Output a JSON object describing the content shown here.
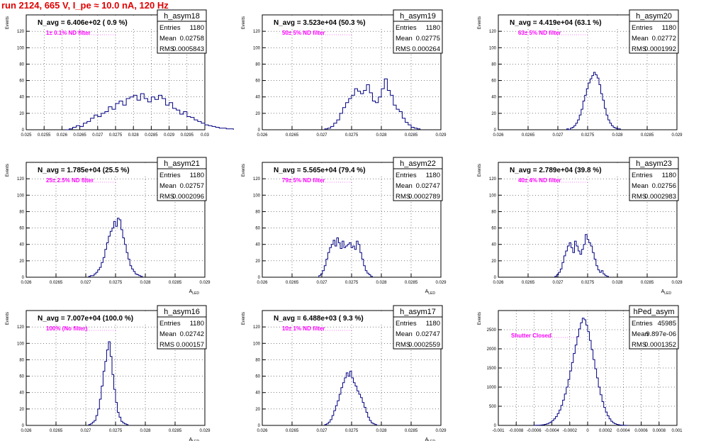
{
  "run_title": "run 2124,   665 V, I_pe ≈ 10.0 nA, 120 Hz",
  "colors": {
    "line": "#000080",
    "note": "#ff00ff",
    "title": "#e00000"
  },
  "chart_data": [
    {
      "type": "histogram",
      "title": "h_asym18",
      "stats": {
        "entries_label": "Entries",
        "entries": "1180",
        "mean_label": "Mean",
        "mean": "0.02758",
        "rms_label": "RMS",
        "rms": "0.0005843"
      },
      "navg": "N_avg = 6.406e+02 ( 0.9 %)",
      "note": "1± 0.1% ND filter",
      "ylabel": "Events",
      "xlabel": "",
      "xlim": [
        0.025,
        0.03
      ],
      "ylim": [
        0,
        140
      ],
      "xticks": [
        "0.025",
        "0.0255",
        "0.026",
        "0.0265",
        "0.027",
        "0.0275",
        "0.028",
        "0.0285",
        "0.029",
        "0.0295",
        "0.03"
      ],
      "yticks": [
        0,
        20,
        40,
        60,
        80,
        100,
        120
      ],
      "bin_start": 0.0261,
      "bin_width": 0.0001,
      "counts": [
        0,
        1,
        3,
        5,
        4,
        8,
        10,
        14,
        18,
        16,
        20,
        22,
        28,
        25,
        32,
        35,
        30,
        38,
        40,
        42,
        36,
        44,
        38,
        34,
        40,
        37,
        42,
        38,
        30,
        33,
        26,
        24,
        19,
        22,
        16,
        15,
        12,
        10,
        8,
        6,
        5,
        4,
        3,
        2,
        2,
        1,
        1
      ]
    },
    {
      "type": "histogram",
      "title": "h_asym19",
      "stats": {
        "entries_label": "Entries",
        "entries": "1180",
        "mean_label": "Mean",
        "mean": "0.02775",
        "rms_label": "RMS",
        "rms": "0.000264"
      },
      "navg": "N_avg = 3.523e+04 (50.3 %)",
      "note": "50± 5% ND filter",
      "ylabel": "Events",
      "xlabel": "",
      "xlim": [
        0.026,
        0.029
      ],
      "ylim": [
        0,
        140
      ],
      "xticks": [
        "0.026",
        "0.0265",
        "0.027",
        "0.0275",
        "0.028",
        "0.0285",
        "0.029"
      ],
      "yticks": [
        0,
        20,
        40,
        60,
        80,
        100,
        120
      ],
      "bin_start": 0.02705,
      "bin_width": 5e-05,
      "counts": [
        1,
        2,
        4,
        8,
        12,
        20,
        27,
        33,
        38,
        42,
        50,
        47,
        44,
        48,
        55,
        45,
        35,
        33,
        40,
        50,
        62,
        48,
        42,
        30,
        25,
        22,
        14,
        9,
        6,
        3,
        2,
        1
      ]
    },
    {
      "type": "histogram",
      "title": "h_asym20",
      "stats": {
        "entries_label": "Entries",
        "entries": "1180",
        "mean_label": "Mean",
        "mean": "0.02772",
        "rms_label": "RMS",
        "rms": "0.0001992"
      },
      "navg": "N_avg = 4.419e+04 (63.1 %)",
      "note": "63± 5% ND filter",
      "ylabel": "Events",
      "xlabel": "",
      "xlim": [
        0.026,
        0.029
      ],
      "ylim": [
        0,
        140
      ],
      "xticks": [
        "0.026",
        "0.0265",
        "0.027",
        "0.0275",
        "0.028",
        "0.0285",
        "0.029"
      ],
      "yticks": [
        0,
        20,
        40,
        60,
        80,
        100,
        120
      ],
      "bin_start": 0.02715,
      "bin_width": 3e-05,
      "counts": [
        1,
        0,
        2,
        3,
        5,
        8,
        12,
        18,
        25,
        35,
        42,
        50,
        57,
        62,
        66,
        70,
        67,
        63,
        55,
        44,
        36,
        26,
        18,
        12,
        8,
        5,
        3,
        2,
        1,
        1
      ]
    },
    {
      "type": "histogram",
      "title": "h_asym21",
      "stats": {
        "entries_label": "Entries",
        "entries": "1180",
        "mean_label": "Mean",
        "mean": "0.02757",
        "rms_label": "RMS",
        "rms": "0.0002096"
      },
      "navg": "N_avg = 1.785e+04 (25.5 %)",
      "note": "25± 2.5% ND filter",
      "ylabel": "Events",
      "xlabel": "A_{LED}",
      "xlim": [
        0.026,
        0.029
      ],
      "ylim": [
        0,
        140
      ],
      "xticks": [
        "0.026",
        "0.0265",
        "0.027",
        "0.0275",
        "0.028",
        "0.0285",
        "0.029"
      ],
      "yticks": [
        0,
        20,
        40,
        60,
        80,
        100,
        120
      ],
      "bin_start": 0.02705,
      "bin_width": 3e-05,
      "counts": [
        1,
        2,
        2,
        4,
        6,
        9,
        12,
        18,
        24,
        34,
        42,
        50,
        56,
        60,
        68,
        62,
        72,
        70,
        58,
        48,
        40,
        30,
        22,
        14,
        10,
        7,
        4,
        3,
        2,
        1
      ]
    },
    {
      "type": "histogram",
      "title": "h_asym22",
      "stats": {
        "entries_label": "Entries",
        "entries": "1180",
        "mean_label": "Mean",
        "mean": "0.02747",
        "rms_label": "RMS",
        "rms": "0.0002789"
      },
      "navg": "N_avg = 5.565e+04 (79.4 %)",
      "note": "79± 5% ND filter",
      "ylabel": "Events",
      "xlabel": "A_{LED}",
      "xlim": [
        0.026,
        0.029
      ],
      "ylim": [
        0,
        140
      ],
      "xticks": [
        "0.026",
        "0.0265",
        "0.027",
        "0.0275",
        "0.028",
        "0.0285",
        "0.029"
      ],
      "yticks": [
        0,
        20,
        40,
        60,
        80,
        100,
        120
      ],
      "bin_start": 0.02695,
      "bin_width": 3e-05,
      "counts": [
        2,
        4,
        8,
        14,
        22,
        30,
        36,
        40,
        45,
        38,
        48,
        42,
        35,
        44,
        36,
        38,
        40,
        42,
        36,
        38,
        34,
        44,
        40,
        30,
        22,
        14,
        8,
        5,
        3,
        1
      ]
    },
    {
      "type": "histogram",
      "title": "h_asym23",
      "stats": {
        "entries_label": "Entries",
        "entries": "1180",
        "mean_label": "Mean",
        "mean": "0.02756",
        "rms_label": "RMS",
        "rms": "0.0002983"
      },
      "navg": "N_avg = 2.789e+04 (39.8 %)",
      "note": "40± 4% ND filter",
      "ylabel": "Events",
      "xlabel": "A_{LED}",
      "xlim": [
        0.026,
        0.029
      ],
      "ylim": [
        0,
        140
      ],
      "xticks": [
        "0.026",
        "0.0265",
        "0.027",
        "0.0275",
        "0.028",
        "0.0285",
        "0.029"
      ],
      "yticks": [
        0,
        20,
        40,
        60,
        80,
        100,
        120
      ],
      "bin_start": 0.02695,
      "bin_width": 3e-05,
      "counts": [
        1,
        3,
        6,
        10,
        18,
        26,
        32,
        38,
        42,
        36,
        30,
        44,
        38,
        32,
        28,
        34,
        40,
        52,
        46,
        42,
        38,
        30,
        22,
        14,
        9,
        6,
        8,
        4,
        2,
        1
      ]
    },
    {
      "type": "histogram",
      "title": "h_asym16",
      "stats": {
        "entries_label": "Entries",
        "entries": "1180",
        "mean_label": "Mean",
        "mean": "0.02742",
        "rms_label": "RMS",
        "rms": "0.000157"
      },
      "navg": "N_avg = 7.007e+04 (100.0 %)",
      "note": "100% (No filter)",
      "ylabel": "Events",
      "xlabel": "A_{LED}",
      "xlim": [
        0.026,
        0.029
      ],
      "ylim": [
        0,
        140
      ],
      "xticks": [
        "0.026",
        "0.0265",
        "0.027",
        "0.0275",
        "0.028",
        "0.0285",
        "0.029"
      ],
      "yticks": [
        0,
        20,
        40,
        60,
        80,
        100,
        120
      ],
      "bin_start": 0.02705,
      "bin_width": 3e-05,
      "counts": [
        1,
        2,
        4,
        6,
        12,
        20,
        32,
        48,
        66,
        78,
        92,
        102,
        84,
        62,
        44,
        28,
        16,
        10,
        5,
        3,
        2,
        1
      ]
    },
    {
      "type": "histogram",
      "title": "h_asym17",
      "stats": {
        "entries_label": "Entries",
        "entries": "1180",
        "mean_label": "Mean",
        "mean": "0.02747",
        "rms_label": "RMS",
        "rms": "0.0002559"
      },
      "navg": "N_avg = 6.488e+03 ( 9.3 %)",
      "note": "10± 1% ND filter",
      "ylabel": "Events",
      "xlabel": "A_{LED}",
      "xlim": [
        0.026,
        0.029
      ],
      "ylim": [
        0,
        140
      ],
      "xticks": [
        "0.026",
        "0.0265",
        "0.027",
        "0.0275",
        "0.028",
        "0.0285",
        "0.029"
      ],
      "yticks": [
        0,
        20,
        40,
        60,
        80,
        100,
        120
      ],
      "bin_start": 0.02705,
      "bin_width": 3e-05,
      "counts": [
        1,
        2,
        4,
        7,
        12,
        18,
        24,
        30,
        38,
        46,
        52,
        58,
        64,
        60,
        66,
        58,
        52,
        48,
        42,
        38,
        34,
        28,
        22,
        16,
        10,
        6,
        3,
        2,
        1
      ]
    },
    {
      "type": "histogram",
      "title": "hPed_asym",
      "stats": {
        "entries_label": "Entries",
        "entries": "45985",
        "mean_label": "Mean",
        "mean": "9.897e-06",
        "rms_label": "RMS",
        "rms": "0.0001352"
      },
      "navg": "",
      "note": "Shutter Closed",
      "ylabel": "Events",
      "xlabel": "",
      "xlim": [
        -0.001,
        0.001
      ],
      "ylim": [
        0,
        3000
      ],
      "xticks": [
        "-0.001",
        "-0.0008",
        "-0.0006",
        "-0.0004",
        "-0.0002",
        "0",
        "0.0002",
        "0.0004",
        "0.0006",
        "0.0008",
        "0.001"
      ],
      "yticks": [
        0,
        500,
        1000,
        1500,
        2000,
        2500
      ],
      "bin_start": -0.0006,
      "bin_width": 2e-05,
      "counts": [
        2,
        3,
        5,
        8,
        12,
        18,
        28,
        42,
        60,
        88,
        125,
        170,
        230,
        310,
        400,
        520,
        660,
        820,
        1000,
        1200,
        1420,
        1640,
        1880,
        2100,
        2320,
        2520,
        2680,
        2800,
        2760,
        2620,
        2450,
        2220,
        1980,
        1720,
        1480,
        1240,
        1000,
        800,
        620,
        470,
        350,
        250,
        170,
        110,
        70,
        45,
        28,
        16,
        9,
        5,
        3,
        2
      ]
    }
  ]
}
